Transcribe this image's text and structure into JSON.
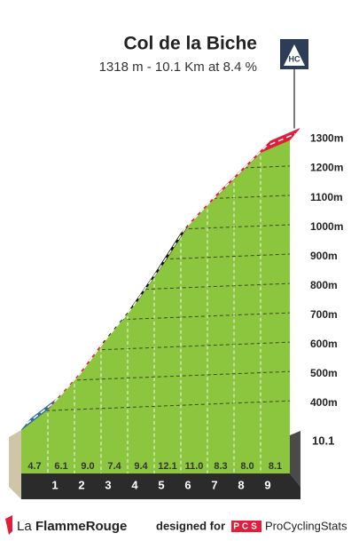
{
  "chart_data": {
    "type": "climb_profile",
    "title": "Col de la Biche",
    "subtitle": "1318 m - 10.1 Km at 8.4 %",
    "category": "HC",
    "x": [
      0,
      1,
      2,
      3,
      4,
      5,
      6,
      7,
      8,
      9,
      10.1
    ],
    "altitude": [
      330,
      400,
      500,
      620,
      730,
      860,
      1000,
      1095,
      1185,
      1275,
      1318
    ],
    "gradients": [
      4.7,
      6.1,
      9.0,
      7.4,
      9.4,
      12.1,
      11.0,
      8.3,
      8.0,
      8.1
    ],
    "gradient_labels": [
      "4.7",
      "6.1",
      "9.0",
      "7.4",
      "9.4",
      "12.1",
      "11.0",
      "8.3",
      "8.0",
      "8.1"
    ],
    "segment_colors": [
      "#2f6e9e",
      "#e21d3c",
      "#e21d3c",
      "#111111",
      "#111111",
      "#111111",
      "#e21d3c",
      "#e21d3c",
      "#e21d3c",
      "#e21d3c"
    ],
    "ylim": [
      300,
      1350
    ],
    "yticks": [
      {
        "value": 400,
        "label": "400m"
      },
      {
        "value": 500,
        "label": "500m"
      },
      {
        "value": 600,
        "label": "600m"
      },
      {
        "value": 700,
        "label": "700m"
      },
      {
        "value": 800,
        "label": "800m"
      },
      {
        "value": 900,
        "label": "900m"
      },
      {
        "value": 1000,
        "label": "1000m"
      },
      {
        "value": 1100,
        "label": "1100m"
      },
      {
        "value": 1200,
        "label": "1200m"
      },
      {
        "value": 1300,
        "label": "1300m"
      }
    ],
    "grid": true,
    "area_color": "#8cc63e"
  },
  "footer": {
    "brand_prefix": "La",
    "brand": "FlammeRouge",
    "designed_for": "designed for",
    "pcs_logo": "PCS",
    "pcs": "ProCyclingStats"
  }
}
